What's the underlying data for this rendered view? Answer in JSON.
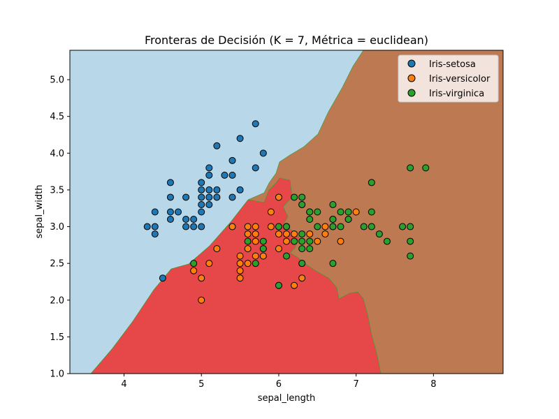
{
  "chart_data": {
    "type": "scatter",
    "title": "Fronteras de Decisión (K = 7, Métrica = euclidean)",
    "xlabel": "sepal_length",
    "ylabel": "sepal_width",
    "xlim": [
      3.3,
      8.9
    ],
    "ylim": [
      1.0,
      5.4
    ],
    "xticks": [
      4,
      5,
      6,
      7,
      8
    ],
    "yticks": [
      1.0,
      1.5,
      2.0,
      2.5,
      3.0,
      3.5,
      4.0,
      4.5,
      5.0
    ],
    "xtick_labels": [
      "4",
      "5",
      "6",
      "7",
      "8"
    ],
    "ytick_labels": [
      "1.0",
      "1.5",
      "2.0",
      "2.5",
      "3.0",
      "3.5",
      "4.0",
      "4.5",
      "5.0"
    ],
    "grid": false,
    "legend_position": "top-right",
    "background_regions": [
      {
        "class": "Iris-setosa",
        "color": "#b8d7e8"
      },
      {
        "class": "Iris-versicolor",
        "color": "#e64749"
      },
      {
        "class": "Iris-virginica",
        "color": "#bd7a52"
      }
    ],
    "series": [
      {
        "name": "Iris-setosa",
        "color": "#1f77b4",
        "points": [
          [
            4.3,
            3.0
          ],
          [
            4.4,
            2.9
          ],
          [
            4.4,
            3.0
          ],
          [
            4.4,
            3.2
          ],
          [
            4.5,
            2.3
          ],
          [
            4.6,
            3.1
          ],
          [
            4.6,
            3.2
          ],
          [
            4.6,
            3.4
          ],
          [
            4.6,
            3.6
          ],
          [
            4.7,
            3.2
          ],
          [
            4.8,
            3.0
          ],
          [
            4.8,
            3.1
          ],
          [
            4.8,
            3.4
          ],
          [
            4.9,
            3.0
          ],
          [
            4.9,
            3.1
          ],
          [
            5.0,
            3.0
          ],
          [
            5.0,
            3.2
          ],
          [
            5.0,
            3.3
          ],
          [
            5.0,
            3.4
          ],
          [
            5.0,
            3.5
          ],
          [
            5.0,
            3.6
          ],
          [
            5.1,
            3.3
          ],
          [
            5.1,
            3.4
          ],
          [
            5.1,
            3.5
          ],
          [
            5.1,
            3.7
          ],
          [
            5.1,
            3.8
          ],
          [
            5.2,
            3.4
          ],
          [
            5.2,
            3.5
          ],
          [
            5.2,
            4.1
          ],
          [
            5.3,
            3.7
          ],
          [
            5.4,
            3.4
          ],
          [
            5.4,
            3.7
          ],
          [
            5.4,
            3.9
          ],
          [
            5.5,
            3.5
          ],
          [
            5.5,
            4.2
          ],
          [
            5.7,
            3.8
          ],
          [
            5.7,
            4.4
          ],
          [
            5.8,
            4.0
          ]
        ]
      },
      {
        "name": "Iris-versicolor",
        "color": "#ff7f0e",
        "points": [
          [
            4.9,
            2.4
          ],
          [
            5.0,
            2.0
          ],
          [
            5.0,
            2.3
          ],
          [
            5.1,
            2.5
          ],
          [
            5.2,
            2.7
          ],
          [
            5.4,
            3.0
          ],
          [
            5.5,
            2.3
          ],
          [
            5.5,
            2.4
          ],
          [
            5.5,
            2.5
          ],
          [
            5.5,
            2.6
          ],
          [
            5.6,
            2.5
          ],
          [
            5.6,
            2.7
          ],
          [
            5.6,
            2.9
          ],
          [
            5.6,
            3.0
          ],
          [
            5.7,
            2.6
          ],
          [
            5.7,
            2.8
          ],
          [
            5.7,
            2.9
          ],
          [
            5.7,
            3.0
          ],
          [
            5.8,
            2.6
          ],
          [
            5.8,
            2.7
          ],
          [
            5.9,
            3.0
          ],
          [
            5.9,
            3.2
          ],
          [
            6.0,
            2.2
          ],
          [
            6.0,
            2.7
          ],
          [
            6.0,
            2.9
          ],
          [
            6.0,
            3.4
          ],
          [
            6.1,
            2.8
          ],
          [
            6.1,
            2.9
          ],
          [
            6.1,
            3.0
          ],
          [
            6.2,
            2.2
          ],
          [
            6.2,
            2.9
          ],
          [
            6.3,
            2.3
          ],
          [
            6.3,
            2.5
          ],
          [
            6.3,
            3.3
          ],
          [
            6.4,
            2.9
          ],
          [
            6.4,
            3.2
          ],
          [
            6.5,
            2.8
          ],
          [
            6.6,
            2.9
          ],
          [
            6.6,
            3.0
          ],
          [
            6.7,
            3.0
          ],
          [
            6.7,
            3.1
          ],
          [
            6.8,
            2.8
          ],
          [
            6.9,
            3.1
          ],
          [
            7.0,
            3.2
          ]
        ]
      },
      {
        "name": "Iris-virginica",
        "color": "#2ca02c",
        "points": [
          [
            4.9,
            2.5
          ],
          [
            5.6,
            2.8
          ],
          [
            5.7,
            2.5
          ],
          [
            5.8,
            2.7
          ],
          [
            5.8,
            2.8
          ],
          [
            6.0,
            2.2
          ],
          [
            6.0,
            3.0
          ],
          [
            6.1,
            2.6
          ],
          [
            6.1,
            3.0
          ],
          [
            6.2,
            2.8
          ],
          [
            6.2,
            3.4
          ],
          [
            6.3,
            2.5
          ],
          [
            6.3,
            2.7
          ],
          [
            6.3,
            2.8
          ],
          [
            6.3,
            2.9
          ],
          [
            6.3,
            3.3
          ],
          [
            6.3,
            3.4
          ],
          [
            6.4,
            2.7
          ],
          [
            6.4,
            2.8
          ],
          [
            6.4,
            3.1
          ],
          [
            6.4,
            3.2
          ],
          [
            6.5,
            3.0
          ],
          [
            6.5,
            3.2
          ],
          [
            6.7,
            2.5
          ],
          [
            6.7,
            3.0
          ],
          [
            6.7,
            3.1
          ],
          [
            6.7,
            3.3
          ],
          [
            6.8,
            3.0
          ],
          [
            6.8,
            3.2
          ],
          [
            6.9,
            3.1
          ],
          [
            6.9,
            3.2
          ],
          [
            7.1,
            3.0
          ],
          [
            7.2,
            3.0
          ],
          [
            7.2,
            3.2
          ],
          [
            7.2,
            3.6
          ],
          [
            7.3,
            2.9
          ],
          [
            7.4,
            2.8
          ],
          [
            7.6,
            3.0
          ],
          [
            7.7,
            2.6
          ],
          [
            7.7,
            2.8
          ],
          [
            7.7,
            3.0
          ],
          [
            7.7,
            3.8
          ],
          [
            7.9,
            3.8
          ]
        ]
      }
    ]
  }
}
